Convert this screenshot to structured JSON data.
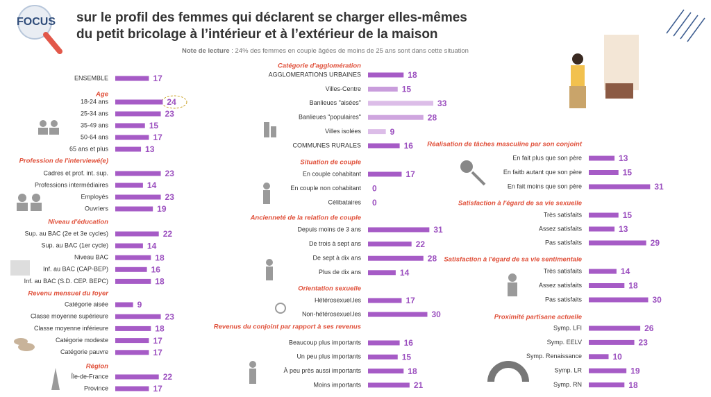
{
  "header": {
    "logo": "FOCUS",
    "title_line1": "sur le profil des femmes qui déclarent se charger elles-mêmes",
    "title_line2": "du petit bricolage à l’intérieur et à l’extérieur de la maison",
    "note_label": "Note de lecture",
    "note_text": " : 24% des femmes  en couple âgées de moins de 25 ans sont dans cette situation"
  },
  "chart_data": [
    {
      "type": "bar",
      "categories": [
        "ENSEMBLE"
      ],
      "values": [
        17
      ],
      "color": "#a65bc6"
    },
    {
      "type": "bar",
      "title": "Age",
      "categories": [
        "18-24 ans",
        "25-34 ans",
        "35-49 ans",
        "50-64 ans",
        "65 ans et plus"
      ],
      "values": [
        24,
        23,
        15,
        17,
        13
      ],
      "color": "#a65bc6"
    },
    {
      "type": "bar",
      "title": "Profession de l'interviewé(e)",
      "categories": [
        "Cadres et prof. int. sup.",
        "Professions intermédiaires",
        "Employés",
        "Ouvriers"
      ],
      "values": [
        23,
        14,
        23,
        19
      ],
      "color": "#a65bc6"
    },
    {
      "type": "bar",
      "title": "Niveau d'éducation",
      "categories": [
        "Sup. au BAC (2e et 3e cycles)",
        "Sup. au BAC (1er cycle)",
        "Niveau BAC",
        "Inf. au BAC (CAP-BEP)",
        "Inf. au BAC (S.D. CEP. BEPC)"
      ],
      "values": [
        22,
        14,
        18,
        16,
        18
      ],
      "color": "#a65bc6"
    },
    {
      "type": "bar",
      "title": "Revenu mensuel du foyer",
      "categories": [
        "Catégorie aisée",
        "Classe moyenne supérieure",
        "Classe moyenne inférieure",
        "Catégorie modeste",
        "Catégorie pauvre"
      ],
      "values": [
        9,
        23,
        18,
        17,
        17
      ],
      "color": "#a65bc6"
    },
    {
      "type": "bar",
      "title": "Région",
      "categories": [
        "Île-de-France",
        "Province"
      ],
      "values": [
        22,
        17
      ],
      "color": "#a65bc6"
    },
    {
      "type": "bar",
      "title": "Catégorie d'agglomération",
      "categories": [
        "AGGLOMERATIONS URBAINES",
        "Villes-Centre",
        "Banlieues \"aisées\"",
        "Banlieues \"populaires\"",
        "Villes isolées",
        "COMMUNES RURALES"
      ],
      "values": [
        18,
        15,
        33,
        28,
        9,
        16
      ],
      "colors": [
        "#a65bc6",
        "#c99ddc",
        "#dcbde8",
        "#cfa6df",
        "#dcbde8",
        "#a65bc6"
      ]
    },
    {
      "type": "bar",
      "title": "Situation de couple",
      "categories": [
        "En couple cohabitant",
        "En couple non cohabitant",
        "Célibataires"
      ],
      "values": [
        17,
        0,
        0
      ],
      "color": "#a65bc6"
    },
    {
      "type": "bar",
      "title": "Ancienneté de la relation de couple",
      "categories": [
        "Depuis moins de 3 ans",
        "De trois à sept ans",
        "De sept à dix ans",
        "Plus de dix ans"
      ],
      "values": [
        31,
        22,
        28,
        14
      ],
      "color": "#a65bc6"
    },
    {
      "type": "bar",
      "title": "Orientation sexuelle",
      "categories": [
        "Hétérosexuel.les",
        "Non-hétérosexuel.les"
      ],
      "values": [
        17,
        30
      ],
      "color": "#a65bc6"
    },
    {
      "type": "bar",
      "title": "Revenus du conjoint par rapport à ses revenus",
      "categories": [
        "Beaucoup plus importants",
        "Un peu plus importants",
        "À peu près aussi importants",
        "Moins importants"
      ],
      "values": [
        16,
        15,
        18,
        21
      ],
      "color": "#a65bc6"
    },
    {
      "type": "bar",
      "title": "Réalisation de tâches masculine par son conjoint",
      "categories": [
        "En fait plus que son père",
        "En faitb autant que son père",
        "En fait moins que son père"
      ],
      "values": [
        13,
        15,
        31
      ],
      "color": "#a65bc6"
    },
    {
      "type": "bar",
      "title": "Satisfaction à l'égard de sa vie sexuelle",
      "categories": [
        "Très satisfaits",
        "Assez satisfaits",
        "Pas satisfaits"
      ],
      "values": [
        15,
        13,
        29
      ],
      "color": "#a65bc6"
    },
    {
      "type": "bar",
      "title": "Satisfaction à l'égard de sa vie sentimentale",
      "categories": [
        "Très satisfaits",
        "Assez satisfaits",
        "Pas satisfaits"
      ],
      "values": [
        14,
        18,
        30
      ],
      "color": "#a65bc6"
    },
    {
      "type": "bar",
      "title": "Proximité partisane actuelle",
      "categories": [
        "Symp. LFI",
        "Symp. EELV",
        "Symp. Renaissance",
        "Symp. LR",
        "Symp. RN"
      ],
      "values": [
        26,
        23,
        10,
        19,
        18
      ],
      "color": "#a65bc6"
    }
  ]
}
